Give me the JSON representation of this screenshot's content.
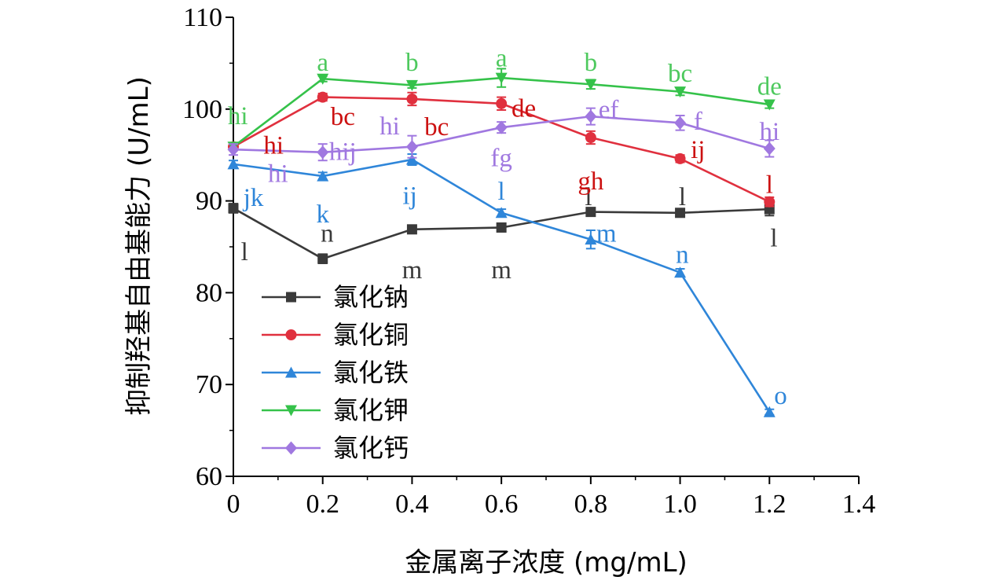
{
  "chart_data": {
    "type": "line",
    "title": "",
    "xlabel": "金属离子浓度 (mg/mL)",
    "ylabel": "抑制羟基自由基能力 (U/mL)",
    "xlim": [
      0,
      1.4
    ],
    "ylim": [
      60,
      110
    ],
    "xticks": [
      "0",
      "0.2",
      "0.4",
      "0.6",
      "0.8",
      "1.0",
      "1.2",
      "1.4"
    ],
    "yticks": [
      "60",
      "70",
      "80",
      "90",
      "100",
      "110"
    ],
    "grid": false,
    "legend_position": "lower-left",
    "x": [
      0,
      0.2,
      0.4,
      0.6,
      0.8,
      1.0,
      1.2
    ],
    "series": [
      {
        "name": "氯化钠",
        "color": "#3a3a3a",
        "marker": "square",
        "values": [
          89.2,
          83.7,
          86.9,
          87.1,
          88.8,
          88.7,
          89.1
        ],
        "errors": [
          0.5,
          0.5,
          0.4,
          0.4,
          0.4,
          0.4,
          0.7
        ],
        "labels": [
          "l",
          "n",
          "m",
          "m",
          "l",
          "l",
          "l"
        ],
        "label_pos": [
          [
            0.025,
            84.5
          ],
          [
            0.21,
            86.5
          ],
          [
            0.4,
            82.5
          ],
          [
            0.6,
            82.5
          ],
          [
            0.795,
            90.5
          ],
          [
            1.005,
            90.5
          ],
          [
            1.21,
            86.0
          ]
        ]
      },
      {
        "name": "氯化铜",
        "color": "#e0303e",
        "marker": "circle",
        "values": [
          95.9,
          101.3,
          101.1,
          100.6,
          96.9,
          94.6,
          89.9
        ],
        "errors": [
          0.4,
          0.4,
          0.7,
          0.7,
          0.7,
          0.4,
          0.5
        ],
        "labels": [
          "hi",
          "bc",
          "bc",
          "de",
          "gh",
          "ij",
          "l"
        ],
        "label_pos": [
          [
            0.09,
            96.1
          ],
          [
            0.245,
            99.2
          ],
          [
            0.455,
            98.1
          ],
          [
            0.65,
            100.1
          ],
          [
            0.8,
            92.2
          ],
          [
            1.04,
            95.6
          ],
          [
            1.2,
            91.8
          ]
        ],
        "label_color": "#cc1111"
      },
      {
        "name": "氯化铁",
        "color": "#2f86d9",
        "marker": "triangle-up",
        "values": [
          94.0,
          92.7,
          94.5,
          88.7,
          85.8,
          82.2,
          67.0
        ],
        "errors": [
          0.4,
          0.4,
          0.6,
          0.4,
          1.0,
          0.4,
          0.3
        ],
        "labels": [
          "jk",
          "k",
          "ij",
          "l",
          "m",
          "n",
          "o"
        ],
        "label_pos": [
          [
            0.045,
            90.4
          ],
          [
            0.2,
            88.6
          ],
          [
            0.395,
            90.6
          ],
          [
            0.6,
            91.1
          ],
          [
            0.835,
            86.5
          ],
          [
            1.005,
            84.2
          ],
          [
            1.225,
            68.8
          ]
        ]
      },
      {
        "name": "氯化钾",
        "color": "#35c24a",
        "marker": "triangle-down",
        "values": [
          95.9,
          103.3,
          102.6,
          103.4,
          102.7,
          101.9,
          100.5
        ],
        "errors": [
          0.3,
          0.3,
          0.3,
          1.0,
          0.5,
          0.4,
          0.4
        ],
        "labels": [
          "hi",
          "a",
          "b",
          "a",
          "b",
          "bc",
          "de"
        ],
        "label_pos": [
          [
            0.01,
            99.3
          ],
          [
            0.2,
            105.1
          ],
          [
            0.4,
            105.1
          ],
          [
            0.6,
            105.6
          ],
          [
            0.8,
            105.1
          ],
          [
            1.0,
            103.9
          ],
          [
            1.2,
            102.5
          ]
        ],
        "label_color": "#4ec95e"
      },
      {
        "name": "氯化钙",
        "color": "#a078e0",
        "marker": "diamond",
        "values": [
          95.6,
          95.3,
          95.9,
          98.0,
          99.2,
          98.5,
          95.7
        ],
        "errors": [
          0.6,
          0.9,
          1.2,
          0.6,
          0.9,
          0.8,
          0.9
        ],
        "labels": [
          "hi",
          "hij",
          "hi",
          "fg",
          "ef",
          "f",
          "hi"
        ],
        "label_pos": [
          [
            0.1,
            93.0
          ],
          [
            0.245,
            95.4
          ],
          [
            0.35,
            98.2
          ],
          [
            0.6,
            94.7
          ],
          [
            0.84,
            100.0
          ],
          [
            1.04,
            98.7
          ],
          [
            1.2,
            97.6
          ]
        ]
      }
    ]
  }
}
